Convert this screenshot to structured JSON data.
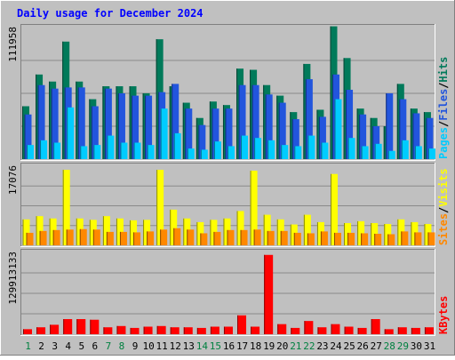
{
  "chart_data": [
    {
      "type": "bar",
      "title": "Daily usage for December 2024",
      "ylabel_max": "111958",
      "ylim": [
        0,
        111958
      ],
      "categories": [
        "1",
        "2",
        "3",
        "4",
        "5",
        "6",
        "7",
        "8",
        "9",
        "10",
        "11",
        "12",
        "13",
        "14",
        "15",
        "16",
        "17",
        "18",
        "19",
        "20",
        "21",
        "22",
        "23",
        "24",
        "25",
        "26",
        "27",
        "28",
        "29",
        "30",
        "31"
      ],
      "weekend_days": [
        "1",
        "7",
        "8",
        "14",
        "15",
        "21",
        "22",
        "28",
        "29"
      ],
      "series": [
        {
          "name": "Hits",
          "color": "#007a5a",
          "values": [
            45000,
            72000,
            66000,
            100000,
            66000,
            51000,
            62000,
            62000,
            62000,
            56000,
            102000,
            62000,
            48000,
            35000,
            49000,
            46000,
            77000,
            76000,
            63000,
            54000,
            40000,
            81000,
            42000,
            113000,
            86000,
            43000,
            35000,
            28000,
            64000,
            43000,
            40000
          ]
        },
        {
          "name": "Files",
          "color": "#2255dd",
          "values": [
            38000,
            63000,
            60000,
            61000,
            61000,
            45000,
            60000,
            56000,
            54000,
            54000,
            57000,
            64000,
            43000,
            29000,
            43000,
            43000,
            63000,
            63000,
            55000,
            48000,
            34000,
            68000,
            36000,
            72000,
            59000,
            38000,
            28000,
            56000,
            51000,
            39000,
            35000
          ]
        },
        {
          "name": "Pages",
          "color": "#00ccff",
          "values": [
            12000,
            16000,
            14000,
            44000,
            11000,
            12000,
            20000,
            14000,
            14000,
            12000,
            43000,
            22000,
            9000,
            8000,
            15000,
            11000,
            20000,
            18000,
            16000,
            12000,
            11000,
            20000,
            14000,
            51000,
            18000,
            11000,
            13000,
            7000,
            16000,
            11000,
            9000
          ]
        }
      ]
    },
    {
      "type": "bar",
      "ylabel_max": "17076",
      "ylim": [
        0,
        17076
      ],
      "categories": [
        "1",
        "2",
        "3",
        "4",
        "5",
        "6",
        "7",
        "8",
        "9",
        "10",
        "11",
        "12",
        "13",
        "14",
        "15",
        "16",
        "17",
        "18",
        "19",
        "20",
        "21",
        "22",
        "23",
        "24",
        "25",
        "26",
        "27",
        "28",
        "29",
        "30",
        "31"
      ],
      "series": [
        {
          "name": "Visits",
          "color": "#ffff00",
          "values": [
            5600,
            6300,
            5800,
            16300,
            5800,
            5500,
            6300,
            5800,
            5400,
            5500,
            16300,
            7700,
            5800,
            5000,
            5500,
            5800,
            7400,
            16100,
            6600,
            5600,
            4500,
            6600,
            5000,
            15400,
            4800,
            5200,
            4800,
            4600,
            5600,
            5000,
            4600
          ]
        },
        {
          "name": "Sites",
          "color": "#ff8800",
          "values": [
            2700,
            3100,
            3300,
            3400,
            3500,
            3400,
            2900,
            2900,
            2800,
            3000,
            3400,
            3700,
            3400,
            2600,
            2900,
            3300,
            3300,
            3400,
            3100,
            3100,
            2700,
            2600,
            3000,
            2700,
            2700,
            2600,
            2500,
            2400,
            3000,
            2800,
            2800
          ]
        }
      ]
    },
    {
      "type": "bar",
      "ylabel_max": "129913133",
      "ylim": [
        0,
        129913133
      ],
      "categories": [
        "1",
        "2",
        "3",
        "4",
        "5",
        "6",
        "7",
        "8",
        "9",
        "10",
        "11",
        "12",
        "13",
        "14",
        "15",
        "16",
        "17",
        "18",
        "19",
        "20",
        "21",
        "22",
        "23",
        "24",
        "25",
        "26",
        "27",
        "28",
        "29",
        "30",
        "31"
      ],
      "series": [
        {
          "name": "KBytes",
          "color": "#ff0000",
          "values": [
            8000000,
            11000000,
            15000000,
            24000000,
            24000000,
            23000000,
            11000000,
            13000000,
            10000000,
            12000000,
            13000000,
            11000000,
            11000000,
            10000000,
            12000000,
            12000000,
            30000000,
            12000000,
            126000000,
            16000000,
            10000000,
            21000000,
            11000000,
            16000000,
            12000000,
            10000000,
            24000000,
            8000000,
            11000000,
            10000000,
            11000000
          ]
        }
      ]
    }
  ]
}
